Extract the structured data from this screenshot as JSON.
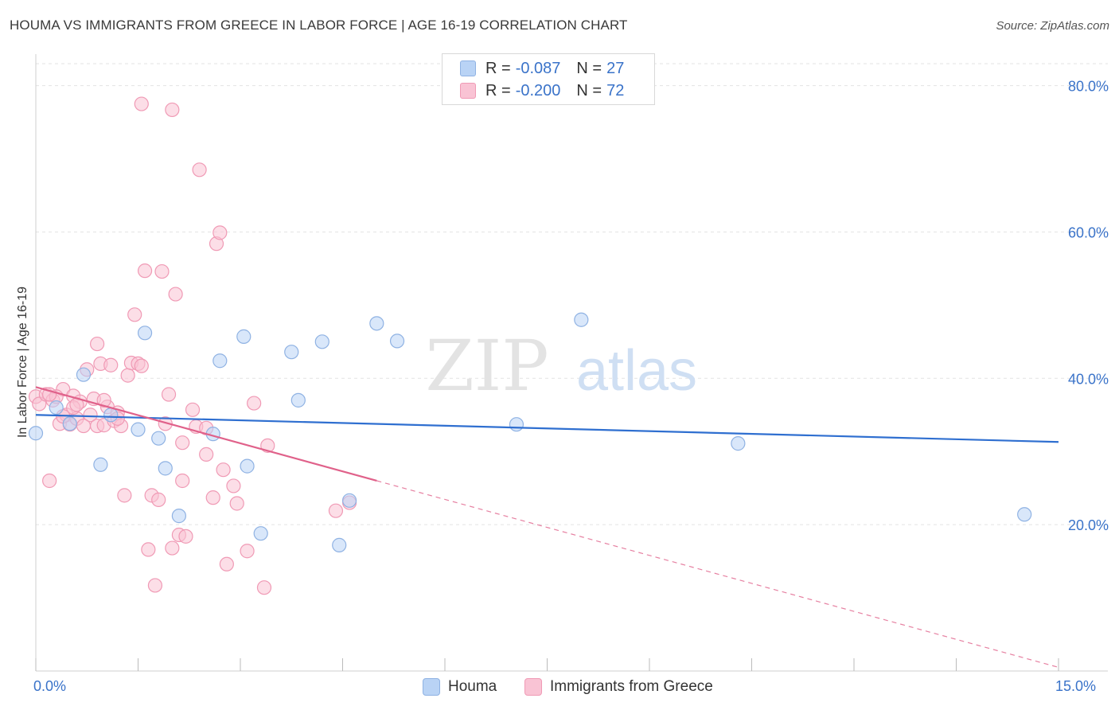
{
  "title": "HOUMA VS IMMIGRANTS FROM GREECE IN LABOR FORCE | AGE 16-19 CORRELATION CHART",
  "source": "Source: ZipAtlas.com",
  "watermark": {
    "zip": "ZIP",
    "atlas": "atlas"
  },
  "legend_top": {
    "rows": [
      {
        "r_label": "R = ",
        "r_value": "-0.087",
        "n_label": "N = ",
        "n_value": "27"
      },
      {
        "r_label": "R = ",
        "r_value": "-0.200",
        "n_label": "N = ",
        "n_value": "72"
      }
    ]
  },
  "legend_bottom": {
    "items": [
      {
        "label": "Houma"
      },
      {
        "label": "Immigrants from Greece"
      }
    ]
  },
  "colors": {
    "houma_fill": "#b9d3f5",
    "houma_stroke": "#8fb2e3",
    "houma_line": "#2f6fd0",
    "greece_fill": "#f9c3d4",
    "greece_stroke": "#f09ab5",
    "greece_line": "#e0618a",
    "axis_label": "#3a73c9",
    "grid": "#e3e3e3"
  },
  "chart_data": {
    "type": "scatter",
    "title": "HOUMA VS IMMIGRANTS FROM GREECE IN LABOR FORCE | AGE 16-19 CORRELATION CHART",
    "xlabel": "",
    "ylabel": "In Labor Force | Age 16-19",
    "xlim": [
      0,
      15
    ],
    "ylim": [
      0,
      83
    ],
    "x_tick_labels": [
      "0.0%",
      "15.0%"
    ],
    "y_ticks": [
      20,
      40,
      60,
      80
    ],
    "y_tick_labels": [
      "20.0%",
      "40.0%",
      "60.0%",
      "80.0%"
    ],
    "grid": true,
    "legend_position": "top-center",
    "series": [
      {
        "name": "Houma",
        "color": "#8fb2e3",
        "R": -0.087,
        "N": 27,
        "trend": {
          "x0": 0.0,
          "y0": 35.0,
          "x1": 15.0,
          "y1": 31.3
        },
        "points": [
          [
            0.0,
            32.5
          ],
          [
            0.3,
            36.0
          ],
          [
            0.5,
            33.8
          ],
          [
            0.7,
            40.5
          ],
          [
            0.95,
            28.2
          ],
          [
            1.1,
            35.0
          ],
          [
            1.5,
            33.0
          ],
          [
            1.6,
            46.2
          ],
          [
            1.8,
            31.8
          ],
          [
            1.9,
            27.7
          ],
          [
            2.1,
            21.2
          ],
          [
            2.6,
            32.4
          ],
          [
            2.7,
            42.4
          ],
          [
            3.1,
            28.0
          ],
          [
            3.05,
            45.7
          ],
          [
            3.3,
            18.8
          ],
          [
            3.75,
            43.6
          ],
          [
            3.85,
            37.0
          ],
          [
            4.2,
            45.0
          ],
          [
            4.45,
            17.2
          ],
          [
            4.6,
            23.3
          ],
          [
            5.0,
            47.5
          ],
          [
            5.3,
            45.1
          ],
          [
            7.05,
            33.7
          ],
          [
            8.0,
            48.0
          ],
          [
            10.3,
            31.1
          ],
          [
            14.5,
            21.4
          ]
        ]
      },
      {
        "name": "Immigrants from Greece",
        "color": "#f09ab5",
        "R": -0.2,
        "N": 72,
        "trend": {
          "x0": 0.0,
          "y0": 38.8,
          "x1": 5.0,
          "y1": 26.0
        },
        "trend_extrapolated": {
          "x0": 5.0,
          "y0": 26.0,
          "x1": 15.0,
          "y1": 0.5
        },
        "points": [
          [
            0.0,
            37.5
          ],
          [
            0.05,
            36.5
          ],
          [
            0.15,
            37.8
          ],
          [
            0.25,
            37.0
          ],
          [
            0.2,
            26.0
          ],
          [
            0.35,
            33.8
          ],
          [
            0.4,
            38.5
          ],
          [
            0.45,
            35.0
          ],
          [
            0.5,
            33.7
          ],
          [
            0.55,
            37.6
          ],
          [
            0.6,
            34.5
          ],
          [
            0.65,
            36.8
          ],
          [
            0.75,
            41.2
          ],
          [
            0.8,
            35.0
          ],
          [
            0.85,
            37.2
          ],
          [
            0.9,
            33.5
          ],
          [
            0.95,
            42.0
          ],
          [
            0.9,
            44.7
          ],
          [
            1.0,
            33.6
          ],
          [
            1.05,
            36.1
          ],
          [
            1.1,
            41.8
          ],
          [
            1.15,
            34.2
          ],
          [
            1.2,
            35.3
          ],
          [
            1.25,
            33.5
          ],
          [
            1.3,
            24.0
          ],
          [
            1.35,
            40.4
          ],
          [
            1.4,
            42.1
          ],
          [
            1.45,
            48.7
          ],
          [
            1.5,
            42.0
          ],
          [
            1.55,
            41.7
          ],
          [
            1.6,
            54.7
          ],
          [
            1.65,
            16.6
          ],
          [
            1.7,
            24.0
          ],
          [
            1.75,
            11.7
          ],
          [
            1.8,
            23.4
          ],
          [
            1.85,
            54.6
          ],
          [
            1.9,
            33.8
          ],
          [
            1.95,
            37.8
          ],
          [
            2.0,
            16.8
          ],
          [
            2.05,
            51.5
          ],
          [
            2.1,
            18.6
          ],
          [
            2.15,
            26.0
          ],
          [
            2.15,
            31.2
          ],
          [
            2.2,
            18.4
          ],
          [
            2.3,
            35.7
          ],
          [
            2.35,
            33.4
          ],
          [
            2.5,
            29.6
          ],
          [
            2.6,
            23.7
          ],
          [
            2.65,
            58.4
          ],
          [
            2.7,
            59.9
          ],
          [
            2.75,
            27.5
          ],
          [
            2.8,
            14.6
          ],
          [
            2.9,
            25.3
          ],
          [
            2.95,
            22.9
          ],
          [
            3.1,
            16.4
          ],
          [
            3.2,
            36.6
          ],
          [
            3.35,
            11.4
          ],
          [
            3.4,
            30.8
          ],
          [
            4.4,
            21.9
          ],
          [
            4.6,
            23.0
          ],
          [
            2.5,
            33.2
          ],
          [
            0.55,
            36.0
          ],
          [
            1.55,
            77.5
          ],
          [
            2.0,
            76.7
          ],
          [
            2.4,
            68.5
          ],
          [
            0.3,
            37.5
          ],
          [
            0.4,
            34.8
          ],
          [
            0.7,
            33.5
          ],
          [
            1.0,
            37.0
          ],
          [
            1.2,
            34.5
          ],
          [
            0.2,
            37.8
          ],
          [
            0.6,
            36.4
          ]
        ]
      }
    ]
  }
}
